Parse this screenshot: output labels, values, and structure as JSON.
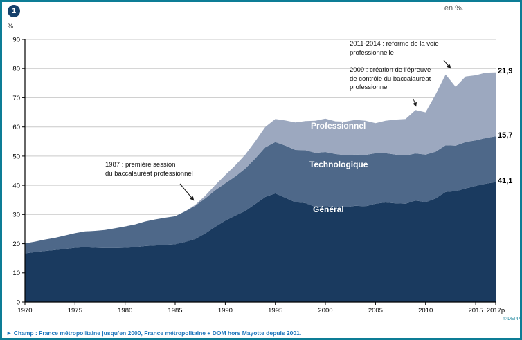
{
  "header": {
    "figure_number": "1",
    "unit": "en %."
  },
  "footer": {
    "champ": "► Champ : France métropolitaine jusqu’en 2000, France métropolitaine + DOM hors Mayotte depuis 2001.",
    "credit": "© DEPP"
  },
  "chart_data": {
    "type": "area",
    "stacked": true,
    "title": "",
    "ylabel": "%",
    "ylim": [
      0,
      90
    ],
    "grid": "horizontal",
    "y_ticks": [
      0,
      10,
      20,
      30,
      40,
      50,
      60,
      70,
      80,
      90
    ],
    "x_ticks": [
      {
        "year": 1970,
        "label": "1970"
      },
      {
        "year": 1975,
        "label": "1975"
      },
      {
        "year": 1980,
        "label": "1980"
      },
      {
        "year": 1985,
        "label": "1985"
      },
      {
        "year": 1990,
        "label": "1990"
      },
      {
        "year": 1995,
        "label": "1995"
      },
      {
        "year": 2000,
        "label": "2000"
      },
      {
        "year": 2005,
        "label": "2005"
      },
      {
        "year": 2010,
        "label": "2010"
      },
      {
        "year": 2015,
        "label": "2015"
      },
      {
        "year": 2017,
        "label": "2017p"
      }
    ],
    "x": [
      1970,
      1971,
      1972,
      1973,
      1974,
      1975,
      1976,
      1977,
      1978,
      1979,
      1980,
      1981,
      1982,
      1983,
      1984,
      1985,
      1986,
      1987,
      1988,
      1989,
      1990,
      1991,
      1992,
      1993,
      1994,
      1995,
      1996,
      1997,
      1998,
      1999,
      2000,
      2001,
      2002,
      2003,
      2004,
      2005,
      2006,
      2007,
      2008,
      2009,
      2010,
      2011,
      2012,
      2013,
      2014,
      2015,
      2016,
      2017
    ],
    "series": [
      {
        "name": "Général",
        "color": "#1a3a5f",
        "values": [
          16.7,
          17.1,
          17.5,
          17.8,
          18.2,
          18.6,
          18.8,
          18.6,
          18.5,
          18.5,
          18.6,
          18.8,
          19.2,
          19.4,
          19.6,
          19.8,
          20.6,
          21.6,
          23.5,
          25.8,
          27.9,
          29.6,
          31.2,
          33.6,
          36.0,
          37.2,
          35.7,
          34.2,
          33.9,
          32.6,
          32.9,
          32.5,
          32.5,
          33.0,
          32.8,
          33.7,
          34.1,
          33.8,
          33.7,
          34.8,
          34.2,
          35.5,
          37.7,
          38.0,
          38.9,
          39.8,
          40.5,
          41.1
        ]
      },
      {
        "name": "Technologique",
        "color": "#4e6889",
        "values": [
          3.4,
          3.6,
          3.9,
          4.2,
          4.6,
          5.0,
          5.4,
          5.8,
          6.2,
          6.8,
          7.3,
          7.8,
          8.4,
          8.9,
          9.3,
          9.6,
          10.5,
          11.4,
          12.0,
          12.5,
          12.8,
          13.4,
          14.5,
          15.6,
          17.0,
          17.6,
          17.9,
          17.9,
          18.1,
          18.5,
          18.5,
          18.2,
          17.8,
          17.5,
          17.6,
          17.3,
          16.9,
          16.7,
          16.5,
          16.1,
          16.3,
          16.0,
          16.0,
          15.6,
          15.9,
          15.6,
          15.7,
          15.7
        ]
      },
      {
        "name": "Professionnel",
        "color": "#9ca8bf",
        "values": [
          0,
          0,
          0,
          0,
          0,
          0,
          0,
          0,
          0,
          0,
          0,
          0,
          0,
          0,
          0,
          0,
          0,
          0.3,
          0.9,
          1.8,
          2.8,
          3.8,
          4.8,
          5.9,
          7.0,
          7.9,
          8.6,
          9.4,
          10.0,
          11.0,
          11.4,
          11.2,
          11.5,
          11.9,
          11.7,
          10.3,
          11.1,
          12.0,
          12.5,
          14.9,
          14.5,
          19.6,
          24.3,
          20.1,
          22.5,
          22.3,
          22.4,
          21.9
        ]
      }
    ],
    "end_labels": [
      {
        "series": "Professionnel",
        "text": "21,9"
      },
      {
        "series": "Technologique",
        "text": "15,7"
      },
      {
        "series": "Général",
        "text": "41,1"
      }
    ],
    "annotations": [
      {
        "lines": [
          "1987 : première session",
          "du baccalauréat professionnel"
        ]
      },
      {
        "lines": [
          "2009 : création de l’épreuve",
          "de contrôle du baccalauréat",
          "professionnel"
        ]
      },
      {
        "lines": [
          "2011-2014 : réforme de la voie",
          "professionnelle"
        ]
      }
    ]
  }
}
